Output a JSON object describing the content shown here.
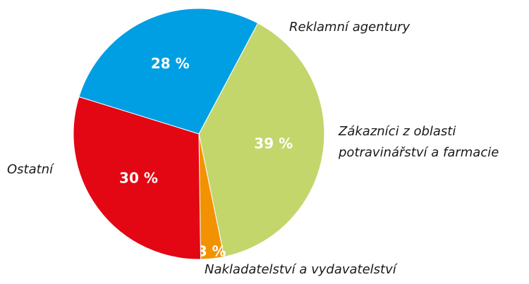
{
  "chart_data": {
    "type": "pie",
    "categories": [
      "Zákazníci z oblasti potravinářství a farmacie",
      "Nakladatelství a vydavatelství",
      "Ostatní",
      "Reklamní agentury"
    ],
    "values": [
      39,
      3,
      30,
      28
    ],
    "value_labels": [
      "39 %",
      "3 %",
      "30 %",
      "28 %"
    ],
    "colors": [
      "#c3d66c",
      "#f39200",
      "#e30613",
      "#009fe3"
    ]
  }
}
